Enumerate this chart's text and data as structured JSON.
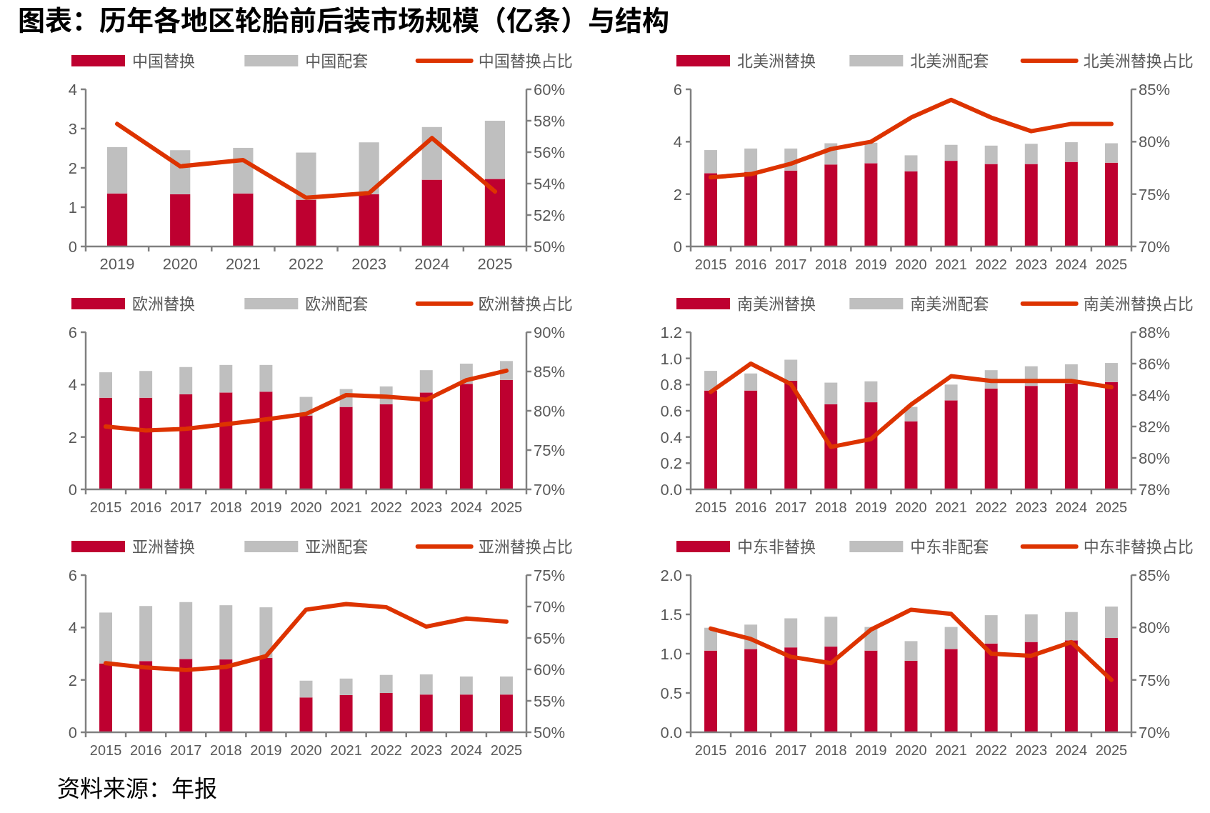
{
  "chart_data": [
    {
      "type": "bar",
      "title": "图表：历年各地区轮胎前后装市场规模（亿条）与结构",
      "stacked": true,
      "legend": "top",
      "categories": [
        "2019",
        "2020",
        "2021",
        "2022",
        "2023",
        "2024",
        "2025"
      ],
      "ylim": [
        0,
        4
      ],
      "yticks": [
        0,
        1,
        2,
        3,
        4
      ],
      "y2lim": [
        50,
        60
      ],
      "y2ticks": [
        {
          "value": 50,
          "label": "50%"
        },
        {
          "value": 52,
          "label": "52%"
        },
        {
          "value": 54,
          "label": "54%"
        },
        {
          "value": 56,
          "label": "56%"
        },
        {
          "value": 58,
          "label": "58%"
        },
        {
          "value": 60,
          "label": "60%"
        }
      ],
      "series": [
        {
          "name": "中国替换",
          "color": "#be0030",
          "values": [
            1.35,
            1.33,
            1.35,
            1.19,
            1.33,
            1.7,
            1.72
          ]
        },
        {
          "name": "中国配套",
          "color": "#bfbfbf",
          "values": [
            1.18,
            1.12,
            1.16,
            1.2,
            1.32,
            1.34,
            1.48
          ]
        },
        {
          "name": "中国替换占比",
          "type": "line",
          "axis": "y2",
          "color": "#dd3300",
          "values": [
            57.8,
            55.1,
            55.5,
            53.1,
            53.4,
            56.9,
            53.5
          ]
        }
      ]
    },
    {
      "type": "bar",
      "stacked": true,
      "legend": "top",
      "categories": [
        "2015",
        "2016",
        "2017",
        "2018",
        "2019",
        "2020",
        "2021",
        "2022",
        "2023",
        "2024",
        "2025"
      ],
      "ylim": [
        0,
        6
      ],
      "yticks": [
        0,
        2,
        4,
        6
      ],
      "y2lim": [
        70,
        85
      ],
      "y2ticks": [
        {
          "value": 70,
          "label": "70%"
        },
        {
          "value": 75,
          "label": "75%"
        },
        {
          "value": 80,
          "label": "80%"
        },
        {
          "value": 85,
          "label": "85%"
        }
      ],
      "series": [
        {
          "name": "北美洲替换",
          "color": "#be0030",
          "values": [
            2.8,
            2.85,
            2.9,
            3.13,
            3.18,
            2.87,
            3.27,
            3.15,
            3.15,
            3.23,
            3.2
          ]
        },
        {
          "name": "北美洲配套",
          "color": "#bfbfbf",
          "values": [
            0.88,
            0.89,
            0.84,
            0.81,
            0.78,
            0.61,
            0.61,
            0.7,
            0.77,
            0.75,
            0.74
          ]
        },
        {
          "name": "北美洲替换占比",
          "type": "line",
          "axis": "y2",
          "color": "#dd3300",
          "values": [
            76.6,
            76.9,
            77.9,
            79.3,
            80.0,
            82.3,
            84.0,
            82.3,
            81.0,
            81.7,
            81.7
          ]
        }
      ]
    },
    {
      "type": "bar",
      "stacked": true,
      "legend": "top",
      "categories": [
        "2015",
        "2016",
        "2017",
        "2018",
        "2019",
        "2020",
        "2021",
        "2022",
        "2023",
        "2024",
        "2025"
      ],
      "ylim": [
        0,
        6
      ],
      "yticks": [
        0,
        2,
        4,
        6
      ],
      "y2lim": [
        70,
        90
      ],
      "y2ticks": [
        {
          "value": 70,
          "label": "70%"
        },
        {
          "value": 75,
          "label": "75%"
        },
        {
          "value": 80,
          "label": "80%"
        },
        {
          "value": 85,
          "label": "85%"
        },
        {
          "value": 90,
          "label": "90%"
        }
      ],
      "series": [
        {
          "name": "欧洲替换",
          "color": "#be0030",
          "values": [
            3.5,
            3.5,
            3.63,
            3.7,
            3.73,
            2.82,
            3.15,
            3.25,
            3.7,
            4.03,
            4.18
          ]
        },
        {
          "name": "欧洲配套",
          "color": "#bfbfbf",
          "values": [
            0.97,
            1.02,
            1.04,
            1.05,
            1.02,
            0.71,
            0.68,
            0.68,
            0.85,
            0.77,
            0.72
          ]
        },
        {
          "name": "欧洲替换占比",
          "type": "line",
          "axis": "y2",
          "color": "#dd3300",
          "values": [
            78.0,
            77.5,
            77.7,
            78.3,
            78.9,
            79.6,
            82.0,
            81.8,
            81.4,
            83.9,
            85.1
          ]
        }
      ]
    },
    {
      "type": "bar",
      "stacked": true,
      "legend": "top",
      "categories": [
        "2015",
        "2016",
        "2017",
        "2018",
        "2019",
        "2020",
        "2021",
        "2022",
        "2023",
        "2024",
        "2025"
      ],
      "ylim": [
        0,
        1.2
      ],
      "yticks": [
        {
          "value": 0,
          "label": "0.0"
        },
        {
          "value": 0.2,
          "label": "0.2"
        },
        {
          "value": 0.4,
          "label": "0.4"
        },
        {
          "value": 0.6,
          "label": "0.6"
        },
        {
          "value": 0.8,
          "label": "0.8"
        },
        {
          "value": 1,
          "label": "1.0"
        },
        {
          "value": 1.2,
          "label": "1.2"
        }
      ],
      "y2lim": [
        78,
        88
      ],
      "y2ticks": [
        {
          "value": 78,
          "label": "78%"
        },
        {
          "value": 80,
          "label": "80%"
        },
        {
          "value": 82,
          "label": "82%"
        },
        {
          "value": 84,
          "label": "84%"
        },
        {
          "value": 86,
          "label": "86%"
        },
        {
          "value": 88,
          "label": "88%"
        }
      ],
      "series": [
        {
          "name": "南美洲替换",
          "color": "#be0030",
          "values": [
            0.755,
            0.755,
            0.83,
            0.65,
            0.665,
            0.52,
            0.68,
            0.77,
            0.79,
            0.81,
            0.82
          ]
        },
        {
          "name": "南美洲配套",
          "color": "#bfbfbf",
          "values": [
            0.15,
            0.13,
            0.16,
            0.165,
            0.16,
            0.11,
            0.12,
            0.14,
            0.15,
            0.145,
            0.145
          ]
        },
        {
          "name": "南美洲替换占比",
          "type": "line",
          "axis": "y2",
          "color": "#dd3300",
          "values": [
            84.2,
            86.0,
            84.7,
            80.7,
            81.2,
            83.4,
            85.2,
            84.9,
            84.9,
            84.9,
            84.5
          ]
        }
      ]
    },
    {
      "type": "bar",
      "stacked": true,
      "legend": "top",
      "categories": [
        "2015",
        "2016",
        "2017",
        "2018",
        "2019",
        "2020",
        "2021",
        "2022",
        "2023",
        "2024",
        "2025"
      ],
      "ylim": [
        0,
        6
      ],
      "yticks": [
        0,
        2,
        4,
        6
      ],
      "y2lim": [
        50,
        75
      ],
      "y2ticks": [
        {
          "value": 50,
          "label": "50%"
        },
        {
          "value": 55,
          "label": "55%"
        },
        {
          "value": 60,
          "label": "60%"
        },
        {
          "value": 65,
          "label": "65%"
        },
        {
          "value": 70,
          "label": "70%"
        },
        {
          "value": 75,
          "label": "75%"
        }
      ],
      "series": [
        {
          "name": "亚洲替换",
          "color": "#be0030",
          "values": [
            2.63,
            2.72,
            2.8,
            2.78,
            2.84,
            1.33,
            1.42,
            1.5,
            1.44,
            1.44,
            1.44
          ]
        },
        {
          "name": "亚洲配套",
          "color": "#bfbfbf",
          "values": [
            1.94,
            2.1,
            2.17,
            2.07,
            1.93,
            0.64,
            0.63,
            0.69,
            0.77,
            0.69,
            0.69
          ]
        },
        {
          "name": "亚洲替换占比",
          "type": "line",
          "axis": "y2",
          "color": "#dd3300",
          "values": [
            61.0,
            60.3,
            59.9,
            60.4,
            62.1,
            69.5,
            70.4,
            69.9,
            66.8,
            68.1,
            67.6
          ]
        }
      ]
    },
    {
      "type": "bar",
      "stacked": true,
      "legend": "top",
      "annotations": [
        "资料来源：年报"
      ],
      "categories": [
        "2015",
        "2016",
        "2017",
        "2018",
        "2019",
        "2020",
        "2021",
        "2022",
        "2023",
        "2024",
        "2025"
      ],
      "ylim": [
        0,
        2
      ],
      "yticks": [
        {
          "value": 0,
          "label": "0.0"
        },
        {
          "value": 0.5,
          "label": "0.5"
        },
        {
          "value": 1,
          "label": "1.0"
        },
        {
          "value": 1.5,
          "label": "1.5"
        },
        {
          "value": 2,
          "label": "2.0"
        }
      ],
      "y2lim": [
        70,
        85
      ],
      "y2ticks": [
        {
          "value": 70,
          "label": "70%"
        },
        {
          "value": 75,
          "label": "75%"
        },
        {
          "value": 80,
          "label": "80%"
        },
        {
          "value": 85,
          "label": "85%"
        }
      ],
      "series": [
        {
          "name": "中东非替换",
          "color": "#be0030",
          "values": [
            1.04,
            1.06,
            1.08,
            1.09,
            1.04,
            0.91,
            1.06,
            1.13,
            1.15,
            1.17,
            1.2
          ]
        },
        {
          "name": "中东非配套",
          "color": "#bfbfbf",
          "values": [
            0.29,
            0.31,
            0.37,
            0.38,
            0.3,
            0.25,
            0.28,
            0.36,
            0.35,
            0.36,
            0.4
          ]
        },
        {
          "name": "中东非替换占比",
          "type": "line",
          "axis": "y2",
          "color": "#dd3300",
          "values": [
            79.9,
            78.9,
            77.2,
            76.6,
            79.8,
            81.7,
            81.3,
            77.5,
            77.3,
            78.6,
            75.0
          ]
        }
      ]
    }
  ]
}
